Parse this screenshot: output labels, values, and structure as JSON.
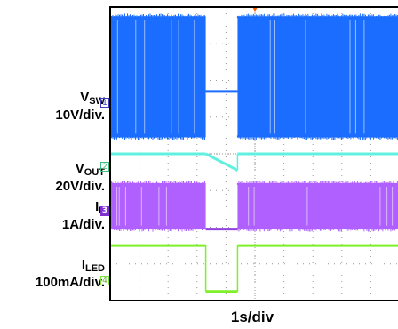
{
  "chart_data": {
    "type": "line",
    "title": "",
    "xlabel": "1s/div",
    "ylabel": "",
    "x_divisions": 10,
    "y_divisions": 8,
    "grid": true,
    "channels": [
      {
        "id": "1",
        "name_main": "V",
        "name_sub": "SW",
        "scale": "10V/div.",
        "marker_color": "#4040c0",
        "segments": [
          {
            "signal": "switching",
            "x_start": 0,
            "x_end": 3.3,
            "low": 4.45,
            "high": 7.75,
            "color": "#1a6dff"
          },
          {
            "signal": "flat",
            "x_start": 3.3,
            "x_end": 4.4,
            "y_start": 5.7,
            "y_end": 5.7,
            "color": "#1a6dff"
          },
          {
            "signal": "switching",
            "x_start": 4.4,
            "x_end": 10,
            "low": 4.45,
            "high": 7.75,
            "color": "#1a6dff"
          }
        ]
      },
      {
        "id": "c",
        "name_main": "",
        "name_sub": "",
        "scale": "",
        "marker_color": "#40e0d0",
        "segments": [
          {
            "signal": "flat",
            "x_start": 0,
            "x_end": 3.3,
            "y_start": 4.0,
            "y_end": 4.0,
            "color": "#60f0e0"
          },
          {
            "signal": "ramp",
            "x_start": 3.3,
            "x_end": 4.4,
            "y_start": 4.0,
            "y_end": 3.55,
            "color": "#60f0e0"
          },
          {
            "signal": "flat",
            "x_start": 4.4,
            "x_end": 10,
            "y_start": 4.0,
            "y_end": 4.0,
            "color": "#60f0e0"
          }
        ]
      },
      {
        "id": "2",
        "name_main": "V",
        "name_sub": "OUT",
        "scale": "20V/div.",
        "marker_color": "#40c080",
        "segments": [
          {
            "signal": "switching",
            "x_start": 0,
            "x_end": 3.3,
            "low": 1.95,
            "high": 3.2,
            "color": "#b060ff"
          },
          {
            "signal": "flat",
            "x_start": 3.3,
            "x_end": 4.4,
            "y_start": 1.95,
            "y_end": 1.95,
            "color": "#9040e0"
          },
          {
            "signal": "switching",
            "x_start": 4.4,
            "x_end": 10,
            "low": 1.95,
            "high": 3.2,
            "color": "#b060ff"
          }
        ]
      },
      {
        "id": "3",
        "name_main": "I",
        "name_sub": "L",
        "scale": "1A/div.",
        "marker_color": "#8030d0",
        "segments": []
      },
      {
        "id": "4",
        "name_main": "I",
        "name_sub": "LED",
        "scale": "100mA/div.",
        "marker_color": "#80e040",
        "segments": [
          {
            "signal": "flat",
            "x_start": 0,
            "x_end": 3.3,
            "y_start": 1.5,
            "y_end": 1.5,
            "color": "#7ef02a"
          },
          {
            "signal": "flat",
            "x_start": 3.3,
            "x_end": 4.4,
            "y_start": 0.25,
            "y_end": 0.25,
            "color": "#7ef02a"
          },
          {
            "signal": "flat",
            "x_start": 4.4,
            "x_end": 10,
            "y_start": 1.5,
            "y_end": 1.5,
            "color": "#7ef02a"
          }
        ]
      }
    ]
  }
}
